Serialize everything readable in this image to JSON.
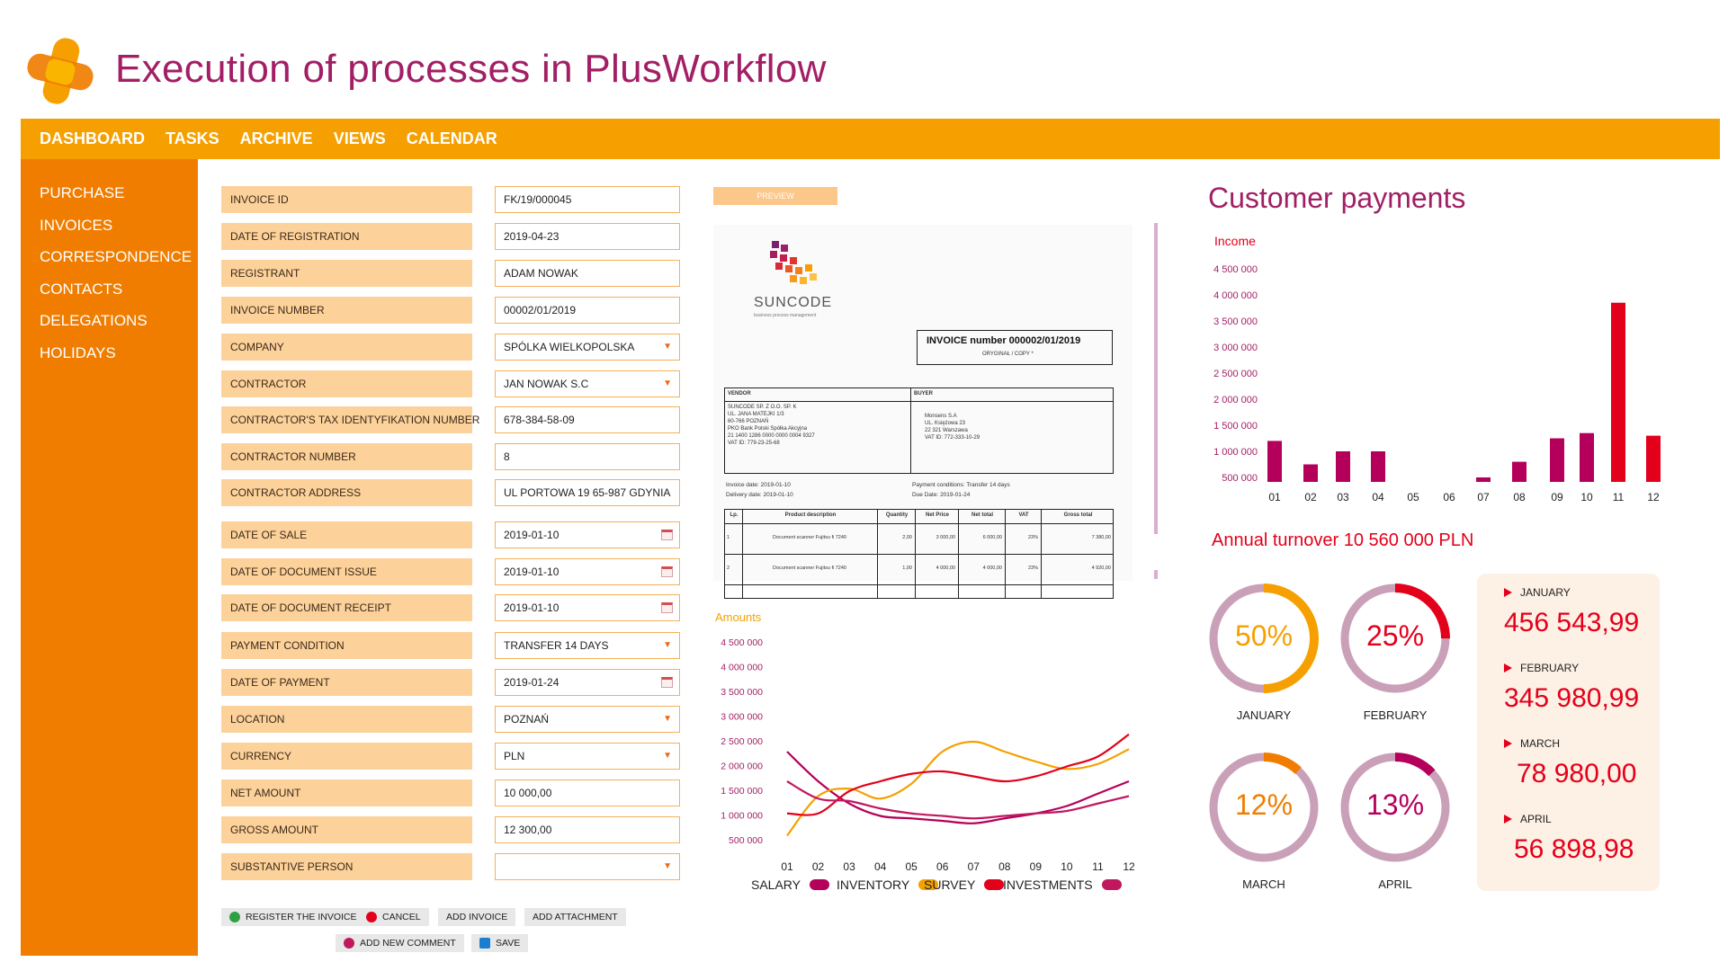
{
  "header": {
    "title": "Execution of processes in PlusWorkflow"
  },
  "topnav": [
    "DASHBOARD",
    "TASKS",
    "ARCHIVE",
    "VIEWS",
    "CALENDAR"
  ],
  "sidebar": [
    "PURCHASE",
    "INVOICES",
    "CORRESPONDENCE",
    "CONTACTS",
    "DELEGATIONS",
    "HOLIDAYS"
  ],
  "form": {
    "fields": [
      {
        "label": "INVOICE ID",
        "value": "FK/19/000045",
        "type": "text"
      },
      {
        "label": "DATE OF REGISTRATION",
        "value": "2019-04-23",
        "type": "text"
      },
      {
        "label": "REGISTRANT",
        "value": "ADAM NOWAK",
        "type": "text"
      },
      {
        "label": "INVOICE NUMBER",
        "value": "00002/01/2019",
        "type": "text"
      },
      {
        "label": "COMPANY",
        "value": "SPÓLKA WIELKOPOLSKA",
        "type": "select"
      },
      {
        "label": "CONTRACTOR",
        "value": "JAN NOWAK S.C",
        "type": "select"
      },
      {
        "label": "CONTRACTOR'S TAX IDENTYFIKATION NUMBER",
        "value": "678-384-58-09",
        "type": "text"
      },
      {
        "label": "CONTRACTOR NUMBER",
        "value": "8",
        "type": "text"
      },
      {
        "label": "CONTRACTOR ADDRESS",
        "value": "UL PORTOWA 19 65-987 GDYNIA",
        "type": "text"
      },
      {
        "label": "DATE OF SALE",
        "value": "2019-01-10",
        "type": "date"
      },
      {
        "label": "DATE OF DOCUMENT ISSUE",
        "value": "2019-01-10",
        "type": "date"
      },
      {
        "label": "DATE OF DOCUMENT RECEIPT",
        "value": "2019-01-10",
        "type": "date"
      },
      {
        "label": "PAYMENT CONDITION",
        "value": "TRANSFER 14 DAYS",
        "type": "select"
      },
      {
        "label": "DATE OF PAYMENT",
        "value": "2019-01-24",
        "type": "date"
      },
      {
        "label": "LOCATION",
        "value": "POZNAŃ",
        "type": "select"
      },
      {
        "label": "CURRENCY",
        "value": "PLN",
        "type": "select"
      },
      {
        "label": "NET AMOUNT",
        "value": "10 000,00",
        "type": "text"
      },
      {
        "label": "GROSS AMOUNT",
        "value": "12 300,00",
        "type": "text"
      },
      {
        "label": "SUBSTANTIVE PERSON",
        "value": "",
        "type": "select"
      }
    ],
    "buttons": {
      "register": "REGISTER THE INVOICE",
      "cancel": "CANCEL",
      "add_invoice": "ADD INVOICE",
      "add_attachment": "ADD ATTACHMENT",
      "add_comment": "ADD NEW COMMENT",
      "save": "SAVE"
    }
  },
  "preview": {
    "button": "PREVIEW",
    "doc": {
      "brand": "SUNCODE",
      "brand_sub": "business process management",
      "title": "INVOICE number 000002/01/2019",
      "copy": "ORYGINAŁ / COPY *",
      "vendor_head": "VENDOR",
      "buyer_head": "BUYER",
      "vendor_lines": [
        "SUNCODE SP. Z O.O. SP. K",
        "UL. JANA MATEJKI 1/3",
        "60-766 POZNAŃ",
        "PKO Bank Polski Spółka Akcyjna",
        "21 1400 1286 0000 0000 0004 9327",
        "VAT ID: 779-23-25-68"
      ],
      "buyer_lines": [
        "Monsens S.A",
        "UL. Księżowa 23",
        "22 321 Warszawa",
        "VAT ID: 772-333-10-29"
      ],
      "invoice_date": "Invoice date: 2019-01-10",
      "delivery_date": "Delivery date: 2019-01-10",
      "payment_cond": "Payment conditions: Transfer 14 days",
      "due_date": "Due Date: 2019-01-24",
      "table_head": [
        "Lp.",
        "Product description",
        "Quantity",
        "Net Price",
        "Net total",
        "VAT",
        "Gross total"
      ],
      "rows": [
        [
          "1",
          "Document scanner Fujitsu fi 7240",
          "2,00",
          "3 000,00",
          "6 000,00",
          "23%",
          "7 380,00"
        ],
        [
          "2",
          "Document scanner Fujitsu fi 7240",
          "1,00",
          "4 000,00",
          "4 000,00",
          "23%",
          "4 920,00"
        ]
      ]
    }
  },
  "line_chart": {
    "chart_data": {
      "type": "line",
      "title": "Amounts",
      "categories": [
        "01",
        "02",
        "03",
        "04",
        "05",
        "06",
        "07",
        "08",
        "09",
        "10",
        "11",
        "12"
      ],
      "yticks": [
        "4 500 000",
        "4 000 000",
        "3 500 000",
        "3 000 000",
        "2 500 000",
        "2 000 000",
        "1 500 000",
        "1 000 000",
        "500 000"
      ],
      "ylim": [
        500000,
        4500000
      ],
      "series": [
        {
          "name": "SALARY",
          "color": "#b5005b",
          "values": [
            2300000,
            1700000,
            1250000,
            1000000,
            950000,
            900000,
            850000,
            950000,
            1050000,
            1200000,
            1450000,
            1700000
          ]
        },
        {
          "name": "INVENTORY",
          "color": "#f5a000",
          "values": [
            600000,
            1400000,
            1550000,
            1350000,
            1650000,
            2300000,
            2500000,
            2300000,
            2100000,
            1950000,
            2050000,
            2350000
          ]
        },
        {
          "name": "SURVEY",
          "color": "#e3001b",
          "values": [
            1050000,
            1050000,
            1500000,
            1700000,
            1850000,
            1900000,
            1800000,
            1700000,
            1800000,
            2000000,
            2200000,
            2650000
          ]
        },
        {
          "name": "INVESTMENTS",
          "color": "#c0185f",
          "values": [
            1700000,
            1350000,
            1300000,
            1150000,
            1050000,
            1000000,
            950000,
            1000000,
            1050000,
            1100000,
            1250000,
            1400000
          ]
        }
      ]
    }
  },
  "payments": {
    "title": "Customer payments",
    "chart_data": {
      "type": "bar",
      "ylabel": "Income",
      "categories": [
        "01",
        "02",
        "03",
        "04",
        "05",
        "06",
        "07",
        "08",
        "09",
        "10",
        "11",
        "12"
      ],
      "yticks": [
        "4 500 000",
        "4 000 000",
        "3 500 000",
        "3 000 000",
        "2 500 000",
        "2 000 000",
        "1 500 000",
        "1 000 000",
        "500 000"
      ],
      "ylim": [
        500000,
        4500000
      ],
      "values": [
        1200000,
        750000,
        1000000,
        1000000,
        400000,
        400000,
        500000,
        800000,
        1250000,
        1350000,
        3850000,
        1300000
      ],
      "colors": [
        "#b5005b",
        "#b5005b",
        "#b5005b",
        "#b5005b",
        "#b5005b",
        "#b5005b",
        "#b5005b",
        "#b5005b",
        "#b5005b",
        "#b5005b",
        "#e3001b",
        "#e3001b"
      ]
    },
    "annual": "Annual turnover 10 560 000 PLN",
    "donuts": [
      {
        "pct": 50,
        "label": "50%",
        "month": "JANUARY",
        "color": "#f5a000",
        "textColor": "#f5a000"
      },
      {
        "pct": 25,
        "label": "25%",
        "month": "FEBRUARY",
        "color": "#e3001b",
        "textColor": "#e3001b"
      },
      {
        "pct": 12,
        "label": "12%",
        "month": "MARCH",
        "color": "#f07d00",
        "textColor": "#f07d00"
      },
      {
        "pct": 13,
        "label": "13%",
        "month": "APRIL",
        "color": "#b5005b",
        "textColor": "#b5005b"
      }
    ],
    "months": [
      {
        "name": "JANUARY",
        "value": "456 543,99"
      },
      {
        "name": "FEBRUARY",
        "value": "345 980,99"
      },
      {
        "name": "MARCH",
        "value": "78 980,00"
      },
      {
        "name": "APRIL",
        "value": "56 898,98"
      }
    ]
  }
}
